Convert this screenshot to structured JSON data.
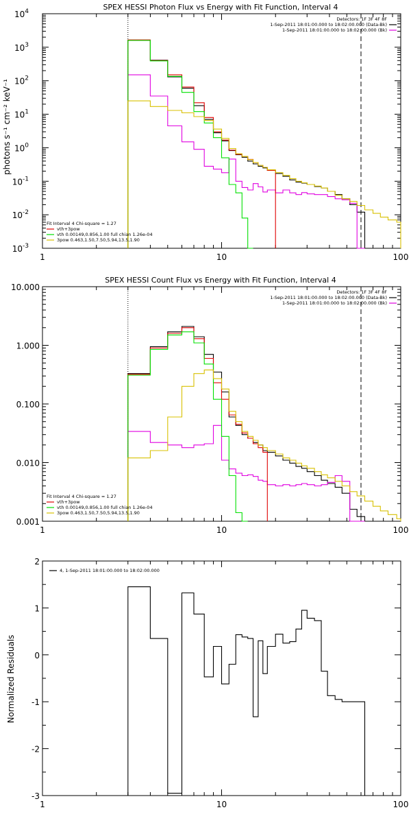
{
  "colors": {
    "black": "#000000",
    "red": "#e00000",
    "green": "#00e000",
    "magenta": "#e000e0",
    "yellow": "#d8c000"
  },
  "chart_data": [
    {
      "type": "line",
      "title": "SPEX HESSI Photon Flux vs Energy with Fit Function, Interval 4",
      "ylabel": "photons s⁻¹ cm⁻² keV⁻¹",
      "xscale": "log",
      "yscale": "log",
      "xlim": [
        1,
        100
      ],
      "ylim": [
        0.001,
        10000
      ],
      "xticks": [
        1,
        10,
        100
      ],
      "xtick_labels": [
        "1",
        "10",
        "100"
      ],
      "yticks": [
        0.001,
        0.01,
        0.1,
        1,
        10,
        100,
        1000,
        10000
      ],
      "ytick_base_labels": [
        "10",
        "10",
        "10",
        "10",
        "10",
        "10",
        "10",
        "10"
      ],
      "ytick_exp_labels": [
        "-3",
        "-2",
        "-1",
        "0",
        "1",
        "2",
        "3",
        "4"
      ],
      "vlines": [
        {
          "x": 3.0,
          "style": "dotted"
        },
        {
          "x": 60,
          "style": "dashed"
        }
      ],
      "legend_top": [
        "Detectors: 1F 3F 4F 8F",
        "1-Sep-2011 18:01:00.000 to 18:02:00.000 (Data-Bk)",
        "1-Sep-2011 18:01:00.000 to 18:02:00.000 (Bk)"
      ],
      "legend_bottom": [
        "Fit Interval 4   Chi-square = 1.27",
        "vth+3pow",
        "vth 0.00149,0.856,1.00  full chian 1.26e-04",
        "3pow 0.463,1.50,7.50,5.94,13.5,1.90"
      ],
      "edges": [
        3.0,
        4.0,
        5.0,
        6.0,
        7.0,
        8.0,
        9.0,
        10.0,
        11.0,
        12.0,
        13.0,
        14.0,
        15.0,
        16.0,
        17.0,
        18.0,
        20.0,
        22.0,
        24.0,
        26.0,
        28.0,
        30.0,
        33.0,
        36.0,
        39.0,
        43.0,
        47.0,
        52.0,
        57.0,
        63.0,
        70.0,
        77.0,
        85.0,
        95.0,
        100.0
      ],
      "series": [
        {
          "name": "Data-Bk",
          "color": "black",
          "values": [
            1600,
            410,
            130,
            60,
            18,
            7,
            2.8,
            1.6,
            0.82,
            0.62,
            0.52,
            0.4,
            0.33,
            0.28,
            0.25,
            0.21,
            0.17,
            0.14,
            0.11,
            0.095,
            0.088,
            0.08,
            0.07,
            0.063,
            0.05,
            0.04,
            0.03,
            0.02,
            0.012
          ]
        },
        {
          "name": "Bk",
          "color": "magenta",
          "values": [
            150,
            35,
            4.5,
            1.5,
            0.9,
            0.28,
            0.23,
            0.18,
            0.46,
            0.1,
            0.065,
            0.055,
            0.085,
            0.068,
            0.048,
            0.055,
            0.045,
            0.055,
            0.045,
            0.04,
            0.046,
            0.042,
            0.04,
            0.04,
            0.035,
            0.03,
            0.028,
            0.022,
            0.0008
          ]
        },
        {
          "name": "vth+3pow",
          "color": "red",
          "values": [
            1650,
            400,
            150,
            65,
            22,
            8,
            3.0,
            1.7,
            0.85,
            0.64,
            0.55,
            0.45,
            0.36,
            0.3,
            0.26,
            0.21
          ]
        },
        {
          "name": "vth",
          "color": "green",
          "values": [
            1600,
            390,
            135,
            45,
            12,
            5.5,
            2.0,
            0.5,
            0.08,
            0.045,
            0.008,
            0.0009
          ]
        },
        {
          "name": "3pow",
          "color": "yellow",
          "values": [
            25,
            17,
            13,
            11,
            8.5,
            6.5,
            3.6,
            1.9,
            0.95,
            0.66,
            0.55,
            0.44,
            0.36,
            0.3,
            0.26,
            0.22,
            0.18,
            0.15,
            0.12,
            0.1,
            0.09,
            0.08,
            0.072,
            0.063,
            0.05,
            0.038,
            0.03,
            0.025,
            0.019,
            0.014,
            0.011,
            0.0085,
            0.007,
            0.006
          ]
        }
      ]
    },
    {
      "type": "line",
      "title": "SPEX HESSI Count Flux vs Energy with Fit Function, Interval 4",
      "ylabel": "",
      "xscale": "log",
      "yscale": "log",
      "xlim": [
        1,
        100
      ],
      "ylim": [
        0.001,
        10
      ],
      "xticks": [
        1,
        10,
        100
      ],
      "xtick_labels": [
        "1",
        "10",
        "100"
      ],
      "yticks": [
        0.001,
        0.01,
        0.1,
        1,
        10
      ],
      "ytick_labels": [
        "0.001",
        "0.010",
        "0.100",
        "1.000",
        "10.000"
      ],
      "vlines": [
        {
          "x": 3.0,
          "style": "dotted"
        },
        {
          "x": 60,
          "style": "dashed"
        }
      ],
      "legend_top": [
        "Detectors: 1F 3F 4F 8F",
        "1-Sep-2011 18:01:00.000 to 18:02:00.000 (Data-Bk)",
        "1-Sep-2011 18:01:00.000 to 18:02:00.000 (Bk)"
      ],
      "legend_bottom": [
        "Fit Interval 4   Chi-square = 1.27",
        "vth+3pow",
        "vth 0.00149,0.856,1.00  full chian 1.26e-04",
        "3pow 0.463,1.50,7.50,5.94,13.5,1.90"
      ],
      "edges": [
        3.0,
        4.0,
        5.0,
        6.0,
        7.0,
        8.0,
        9.0,
        10.0,
        11.0,
        12.0,
        13.0,
        14.0,
        15.0,
        16.0,
        17.0,
        18.0,
        20.0,
        22.0,
        24.0,
        26.0,
        28.0,
        30.0,
        33.0,
        36.0,
        39.0,
        43.0,
        47.0,
        52.0,
        57.0,
        63.0,
        70.0,
        77.0,
        85.0,
        95.0,
        100.0
      ],
      "series": [
        {
          "name": "Data-Bk",
          "color": "black",
          "values": [
            0.33,
            0.95,
            1.7,
            2.1,
            1.4,
            0.7,
            0.35,
            0.16,
            0.06,
            0.043,
            0.03,
            0.026,
            0.022,
            0.02,
            0.016,
            0.015,
            0.013,
            0.011,
            0.0098,
            0.0086,
            0.008,
            0.007,
            0.006,
            0.005,
            0.0044,
            0.0038,
            0.003,
            0.0016,
            0.0012
          ]
        },
        {
          "name": "Bk",
          "color": "magenta",
          "values": [
            0.034,
            0.022,
            0.02,
            0.018,
            0.02,
            0.021,
            0.043,
            0.011,
            0.0078,
            0.0066,
            0.006,
            0.0062,
            0.0058,
            0.005,
            0.0048,
            0.0042,
            0.004,
            0.0042,
            0.004,
            0.0042,
            0.0044,
            0.0042,
            0.004,
            0.0042,
            0.0046,
            0.006,
            0.0048,
            0.0008,
            0.0008
          ]
        },
        {
          "name": "vth+3pow",
          "color": "red",
          "values": [
            0.32,
            0.9,
            1.6,
            2.0,
            1.3,
            0.6,
            0.23,
            0.12,
            0.065,
            0.045,
            0.032,
            0.026,
            0.021,
            0.018,
            0.015
          ]
        },
        {
          "name": "vth",
          "color": "green",
          "values": [
            0.31,
            0.85,
            1.5,
            1.7,
            1.1,
            0.48,
            0.12,
            0.028,
            0.006,
            0.0014,
            0.0008
          ]
        },
        {
          "name": "3pow",
          "color": "yellow",
          "values": [
            0.012,
            0.016,
            0.06,
            0.2,
            0.33,
            0.38,
            0.27,
            0.18,
            0.075,
            0.05,
            0.034,
            0.028,
            0.024,
            0.02,
            0.018,
            0.016,
            0.014,
            0.012,
            0.011,
            0.0098,
            0.0088,
            0.008,
            0.007,
            0.0062,
            0.0055,
            0.0048,
            0.004,
            0.0032,
            0.0027,
            0.0022,
            0.0018,
            0.0015,
            0.0013,
            0.0011
          ]
        }
      ]
    },
    {
      "type": "line",
      "title": "",
      "ylabel": "Normalized Residuals",
      "xscale": "log",
      "yscale": "linear",
      "xlim": [
        1,
        100
      ],
      "ylim": [
        -3,
        2
      ],
      "xticks": [
        1,
        10,
        100
      ],
      "xtick_labels": [
        "1",
        "10",
        "100"
      ],
      "yticks": [
        -3,
        -2,
        -1,
        0,
        1,
        2
      ],
      "ytick_labels": [
        "-3",
        "-2",
        "-1",
        "0",
        "1",
        "2"
      ],
      "legend": [
        "4, 1-Sep-2011 18:01:00.000 to 18:02:00.000"
      ],
      "edges": [
        3.0,
        4.0,
        5.0,
        6.0,
        7.0,
        8.0,
        9.0,
        10.0,
        11.0,
        12.0,
        13.0,
        14.0,
        15.0,
        16.0,
        17.0,
        18.0,
        20.0,
        22.0,
        24.0,
        26.0,
        28.0,
        30.0,
        33.0,
        36.0,
        39.0,
        43.0,
        47.0,
        52.0,
        57.0,
        63.0
      ],
      "series": [
        {
          "name": "4, 1-Sep-2011 18:01:00.000 to 18:02:00.000",
          "color": "black",
          "values": [
            1.45,
            0.35,
            -2.95,
            1.32,
            0.87,
            -0.47,
            0.18,
            -0.62,
            -0.2,
            0.43,
            0.38,
            0.35,
            -1.32,
            0.3,
            -0.4,
            0.18,
            0.44,
            0.25,
            0.28,
            0.55,
            0.95,
            0.78,
            0.73,
            -0.35,
            -0.87,
            -0.95,
            -1.0,
            -1.0,
            -1.0
          ]
        }
      ]
    }
  ]
}
